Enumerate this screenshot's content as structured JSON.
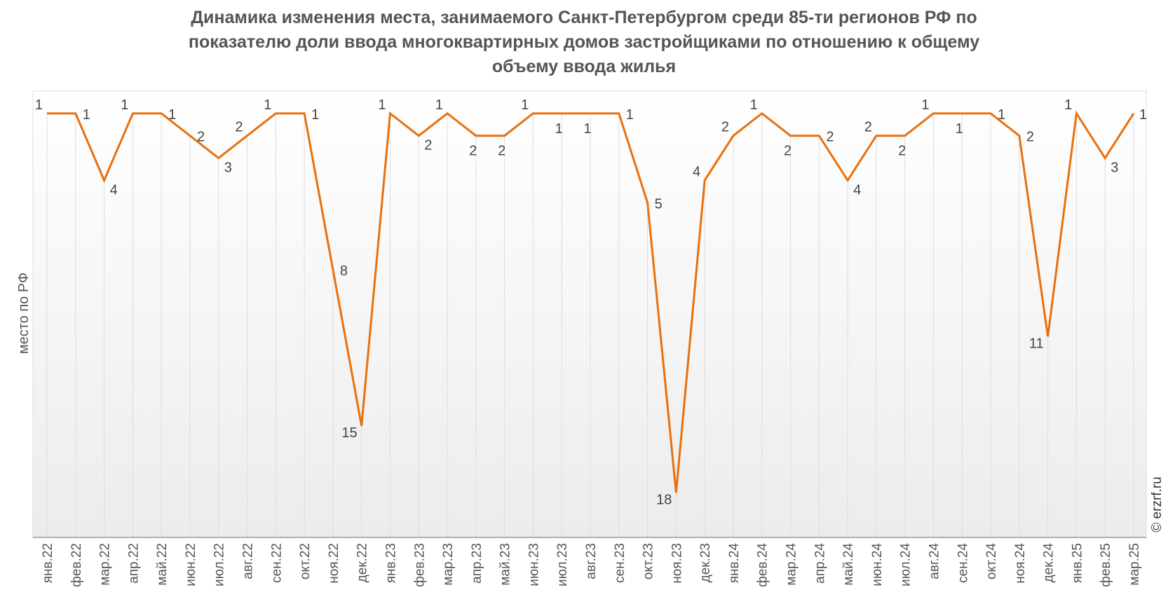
{
  "chart_data": {
    "type": "line",
    "title_lines": [
      "Динамика изменения места, занимаемого Санкт-Петербургом среди 85-ти регионов РФ по",
      "показателю доли ввода многоквартирных домов застройщиками по отношению к общему",
      "объему ввода жилья"
    ],
    "xlabel": "",
    "ylabel": "место по РФ",
    "ylim": [
      0,
      20
    ],
    "y_reversed": true,
    "grid": "vertical",
    "categories": [
      "янв.22",
      "фев.22",
      "мар.22",
      "апр.22",
      "май.22",
      "июн.22",
      "июл.22",
      "авг.22",
      "сен.22",
      "окт.22",
      "ноя.22",
      "дек.22",
      "янв.23",
      "фев.23",
      "мар.23",
      "апр.23",
      "май.23",
      "июн.23",
      "июл.23",
      "авг.23",
      "сен.23",
      "окт.23",
      "ноя.23",
      "дек.23",
      "янв.24",
      "фев.24",
      "мар.24",
      "апр.24",
      "май.24",
      "июн.24",
      "июл.24",
      "авг.24",
      "сен.24",
      "окт.24",
      "ноя.24",
      "дек.24",
      "янв.25",
      "фев.25",
      "мар.25"
    ],
    "series": [
      {
        "name": "место по РФ",
        "color": "#E8700E",
        "values": [
          1,
          1,
          4,
          1,
          1,
          2,
          3,
          2,
          1,
          1,
          8,
          15,
          1,
          2,
          1,
          2,
          2,
          1,
          1,
          1,
          1,
          5,
          18,
          4,
          2,
          1,
          2,
          2,
          4,
          2,
          2,
          1,
          1,
          1,
          2,
          11,
          1,
          3,
          1
        ]
      }
    ]
  },
  "watermark": "© erzrf.ru"
}
